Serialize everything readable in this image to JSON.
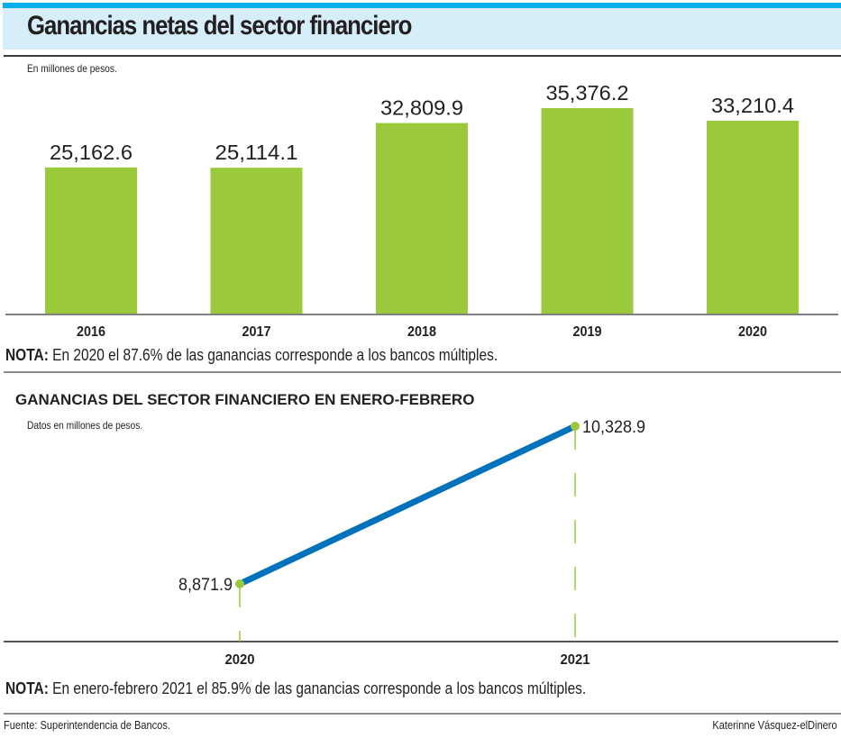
{
  "header": {
    "title": "Ganancias netas del sector financiero",
    "accent_color": "#00aeef",
    "panel_color": "#d5eef9"
  },
  "bar_section": {
    "unit_note": "En millones de pesos.",
    "nota_label": "NOTA:",
    "nota_text": " En 2020 el 87.6% de las ganancias corresponde a los bancos múltiples."
  },
  "line_section": {
    "title": "GANANCIAS DEL SECTOR FINANCIERO EN ENERO-FEBRERO",
    "unit_note": "Datos en millones de pesos.",
    "nota_label": "NOTA:",
    "nota_text": " En enero-febrero 2021 el 85.9% de las ganancias corresponde a los bancos múltiples."
  },
  "footer": {
    "source": "Fuente: Superintendencia de Bancos.",
    "credit": "Katerinne Vásquez-elDinero"
  },
  "chart_data": [
    {
      "type": "bar",
      "title": "Ganancias netas del sector financiero",
      "ylabel": "En millones de pesos.",
      "xlabel": "",
      "categories": [
        "2016",
        "2017",
        "2018",
        "2019",
        "2020"
      ],
      "values": [
        25162.6,
        25114.1,
        32809.9,
        35376.2,
        33210.4
      ],
      "labels": [
        "25,162.6",
        "25,114.1",
        "32,809.9",
        "35,376.2",
        "33,210.4"
      ],
      "ylim": [
        0,
        35376.2
      ],
      "grid": false,
      "bar_color": "#9aca3c"
    },
    {
      "type": "line",
      "title": "GANANCIAS DEL SECTOR FINANCIERO EN ENERO-FEBRERO",
      "ylabel": "Datos en millones de pesos.",
      "xlabel": "",
      "x": [
        "2020",
        "2021"
      ],
      "values": [
        8871.9,
        10328.9
      ],
      "labels": [
        "8,871.9",
        "10,328.9"
      ],
      "grid": false,
      "line_color": "#0072bc",
      "marker_color": "#9aca3c"
    }
  ]
}
